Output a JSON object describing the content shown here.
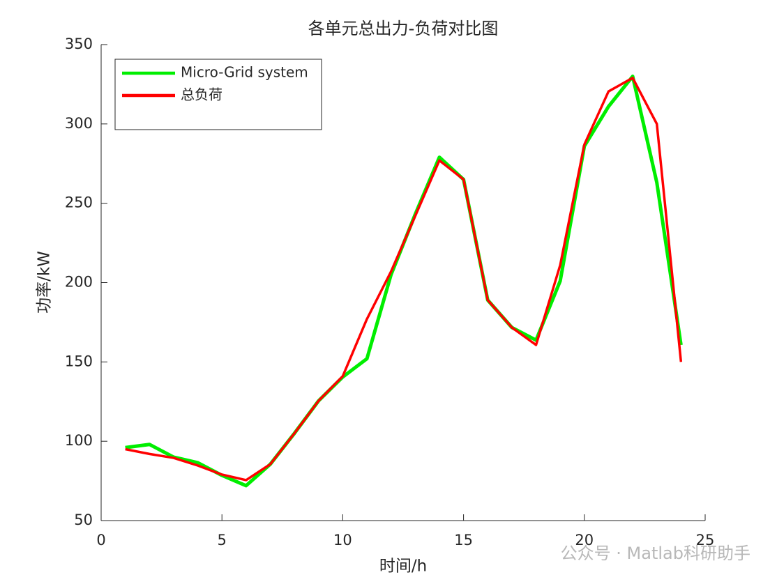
{
  "chart_data": {
    "type": "line",
    "title": "各单元总出力-负荷对比图",
    "x_label": "时间/h",
    "y_label": "功率/kW",
    "x": [
      1,
      2,
      3,
      4,
      5,
      6,
      7,
      8,
      9,
      10,
      11,
      12,
      13,
      14,
      15,
      16,
      17,
      18,
      19,
      20,
      21,
      22,
      23,
      24
    ],
    "series": [
      {
        "name": "Micro-Grid system",
        "color": "#00ee00",
        "values": [
          96,
          98,
          90,
          86.5,
          78.5,
          72,
          85.5,
          105,
          125.5,
          140.5,
          152,
          205,
          243,
          279,
          265,
          189,
          171.7,
          163.7,
          201,
          286,
          311,
          330,
          263,
          160.7
        ]
      },
      {
        "name": "总负荷",
        "color": "#ff0000",
        "values": [
          95,
          92,
          89.5,
          84.7,
          79,
          75.5,
          85.5,
          105,
          125.5,
          141,
          177,
          207,
          242,
          277,
          265,
          189,
          171.7,
          160.7,
          211,
          287,
          320.5,
          329,
          300,
          150
        ]
      }
    ],
    "xlim": [
      0,
      25
    ],
    "xticks": [
      0,
      5,
      10,
      15,
      20,
      25
    ],
    "ylim": [
      50,
      350
    ],
    "yticks": [
      50,
      100,
      150,
      200,
      250,
      300,
      350
    ],
    "legend": "northwest",
    "watermark": "公众号 · Matlab科研助手"
  }
}
